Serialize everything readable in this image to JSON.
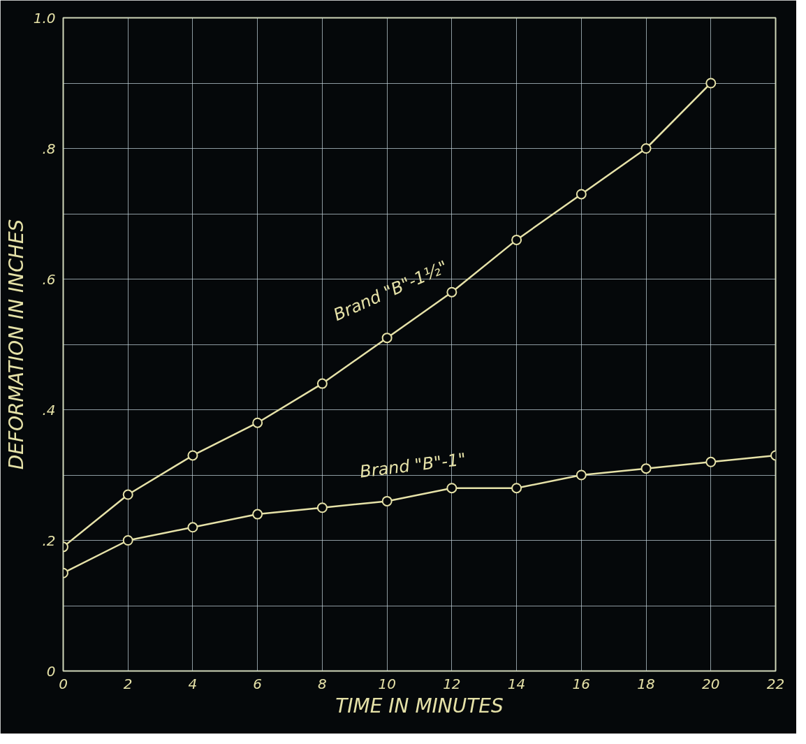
{
  "chart_data": {
    "type": "line",
    "xlabel": "TIME IN MINUTES",
    "ylabel": "DEFORMATION IN INCHES",
    "x": [
      0,
      2,
      4,
      6,
      8,
      10,
      12,
      14,
      16,
      18,
      20,
      22
    ],
    "series": [
      {
        "name": "Brand \"B\"-1½\"",
        "color": "#e6e2a8",
        "values": [
          0.19,
          0.27,
          0.33,
          0.38,
          0.44,
          0.51,
          0.58,
          0.66,
          0.73,
          0.8,
          0.9,
          null
        ]
      },
      {
        "name": "Brand \"B\"-1\"",
        "color": "#e6e2a8",
        "values": [
          0.15,
          0.2,
          0.22,
          0.24,
          0.25,
          0.26,
          0.28,
          0.28,
          0.3,
          0.31,
          0.32,
          0.33
        ]
      }
    ],
    "xlim": [
      0,
      22
    ],
    "ylim": [
      0,
      1.0
    ],
    "xticks": [
      0,
      2,
      4,
      6,
      8,
      10,
      12,
      14,
      16,
      18,
      20,
      22
    ],
    "yticks": [
      0,
      {
        "value": 0.1,
        "label": null
      },
      {
        "value": 0.2,
        "label": ".2"
      },
      {
        "value": 0.3,
        "label": null
      },
      {
        "value": 0.4,
        "label": ".4"
      },
      {
        "value": 0.5,
        "label": null
      },
      {
        "value": 0.6,
        "label": ".6"
      },
      {
        "value": 0.7,
        "label": null
      },
      {
        "value": 0.8,
        "label": ".8"
      },
      {
        "value": 0.9,
        "label": null
      },
      {
        "value": 1.0,
        "label": "1.0"
      }
    ],
    "grid": true,
    "marker": "circle",
    "line_style": "solid"
  }
}
